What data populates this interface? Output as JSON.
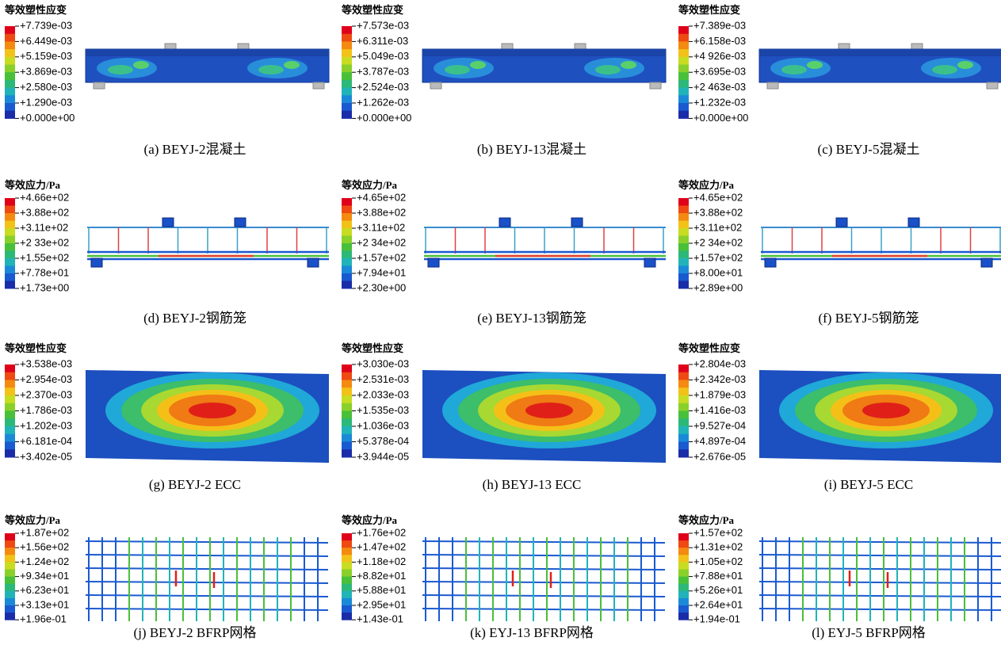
{
  "panels": [
    {
      "legend_title": "等效塑性应变",
      "legend_labels": [
        "+7.739e-03",
        "+6.449e-03",
        "+5.159e-03",
        "+3.869e-03",
        "+2.580e-03",
        "+1.290e-03",
        "+0.000e+00"
      ],
      "caption": "(a) BEYJ-2混凝土"
    },
    {
      "legend_title": "等效塑性应变",
      "legend_labels": [
        "+7.573e-03",
        "+6.311e-03",
        "+5.049e-03",
        "+3.787e-03",
        "+2.524e-03",
        "+1.262e-03",
        "+0.000e+00"
      ],
      "caption": "(b) BEYJ-13混凝土"
    },
    {
      "legend_title": "等效塑性应变",
      "legend_labels": [
        "+7.389e-03",
        "+6.158e-03",
        "+4 926e-03",
        "+3.695e-03",
        "+2 463e-03",
        "+1.232e-03",
        "+0.000e+00"
      ],
      "caption": "(c) BEYJ-5混凝土"
    },
    {
      "legend_title": "等效应力/Pa",
      "legend_labels": [
        "+4.66e+02",
        "+3.88e+02",
        "+3.11e+02",
        "+2 33e+02",
        "+1.55e+02",
        "+7.78e+01",
        "+1.73e+00"
      ],
      "caption": "(d) BEYJ-2钢筋笼"
    },
    {
      "legend_title": "等效应力/Pa",
      "legend_labels": [
        "+4.65e+02",
        "+3.88e+02",
        "+3.11e+02",
        "+2 34e+02",
        "+1.57e+02",
        "+7.94e+01",
        "+2.30e+00"
      ],
      "caption": "(e) BEYJ-13钢筋笼"
    },
    {
      "legend_title": "等效应力/Pa",
      "legend_labels": [
        "+4.65e+02",
        "+3.88e+02",
        "+3.11e+02",
        "+2 34e+02",
        "+1.57e+02",
        "+8.00e+01",
        "+2.89e+00"
      ],
      "caption": "(f) BEYJ-5钢筋笼"
    },
    {
      "legend_title": "等效塑性应变",
      "legend_labels": [
        "+3.538e-03",
        "+2.954e-03",
        "+2.370e-03",
        "+1.786e-03",
        "+1.202e-03",
        "+6.181e-04",
        "+3.402e-05"
      ],
      "caption": "(g) BEYJ-2 ECC"
    },
    {
      "legend_title": "等效塑性应变",
      "legend_labels": [
        "+3.030e-03",
        "+2.531e-03",
        "+2.033e-03",
        "+1.535e-03",
        "+1.036e-03",
        "+5.378e-04",
        "+3.944e-05"
      ],
      "caption": "(h) BEYJ-13 ECC"
    },
    {
      "legend_title": "等效塑性应变",
      "legend_labels": [
        "+2.804e-03",
        "+2.342e-03",
        "+1.879e-03",
        "+1.416e-03",
        "+9.527e-04",
        "+4.897e-04",
        "+2.676e-05"
      ],
      "caption": "(i) BEYJ-5 ECC"
    },
    {
      "legend_title": "等效应力/Pa",
      "legend_labels": [
        "+1.87e+02",
        "+1.56e+02",
        "+1.24e+02",
        "+9.34e+01",
        "+6.23e+01",
        "+3.13e+01",
        "+1.96e-01"
      ],
      "caption": "(j) BEYJ-2 BFRP网格"
    },
    {
      "legend_title": "等效应力/Pa",
      "legend_labels": [
        "+1.76e+02",
        "+1.47e+02",
        "+1.18e+02",
        "+8.82e+01",
        "+5.88e+01",
        "+2.95e+01",
        "+1.43e-01"
      ],
      "caption": "(k) EYJ-13 BFRP网格"
    },
    {
      "legend_title": "等效应力/Pa",
      "legend_labels": [
        "+1.57e+02",
        "+1.31e+02",
        "+1.05e+02",
        "+7.88e+01",
        "+5.26e+01",
        "+2.64e+01",
        "+1.94e-01"
      ],
      "caption": "(l) EYJ-5 BFRP网格"
    }
  ]
}
